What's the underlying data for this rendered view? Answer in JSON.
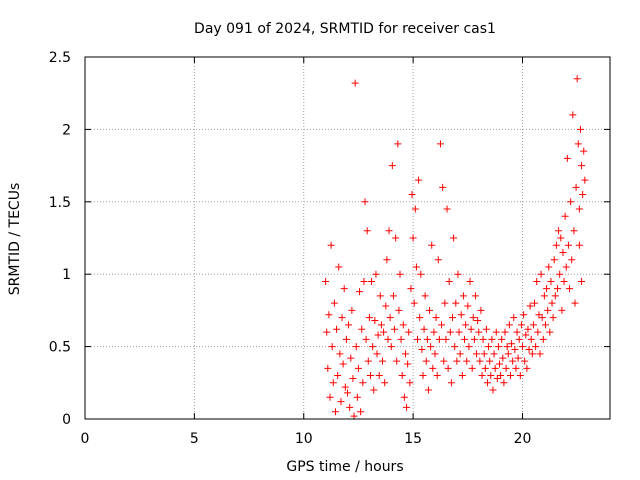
{
  "chart_data": {
    "type": "scatter",
    "title": "Day 091 of 2024, SRMTID for receiver cas1",
    "xlabel": "GPS time / hours",
    "ylabel": "SRMTID / TECUs",
    "xlim": [
      0,
      24
    ],
    "ylim": [
      0,
      2.5
    ],
    "x_ticks": [
      0,
      5,
      10,
      15,
      20
    ],
    "y_ticks": [
      0,
      0.5,
      1,
      1.5,
      2,
      2.5
    ],
    "x_tick_labels": [
      "0",
      "5",
      "10",
      "15",
      "20"
    ],
    "y_tick_labels": [
      "0",
      "0.5",
      "1",
      "1.5",
      "2",
      "2.5"
    ],
    "grid": true,
    "marker": "plus",
    "colors": {
      "points": "#ff0000",
      "grid": "#a0a0a0",
      "axis": "#000000"
    },
    "series": [
      {
        "name": "cas1",
        "points": [
          [
            11.0,
            0.95
          ],
          [
            11.05,
            0.6
          ],
          [
            11.1,
            0.35
          ],
          [
            11.15,
            0.72
          ],
          [
            11.2,
            0.15
          ],
          [
            11.25,
            1.2
          ],
          [
            11.3,
            0.5
          ],
          [
            11.35,
            0.25
          ],
          [
            11.4,
            0.8
          ],
          [
            11.45,
            0.05
          ],
          [
            11.5,
            0.62
          ],
          [
            11.55,
            0.3
          ],
          [
            11.6,
            1.05
          ],
          [
            11.65,
            0.45
          ],
          [
            11.7,
            0.12
          ],
          [
            11.75,
            0.7
          ],
          [
            11.8,
            0.38
          ],
          [
            11.85,
            0.9
          ],
          [
            11.9,
            0.22
          ],
          [
            11.95,
            0.55
          ],
          [
            12.0,
            0.18
          ],
          [
            12.05,
            0.65
          ],
          [
            12.1,
            0.08
          ],
          [
            12.15,
            0.42
          ],
          [
            12.2,
            0.75
          ],
          [
            12.25,
            0.28
          ],
          [
            12.3,
            0.02
          ],
          [
            12.35,
            2.32
          ],
          [
            12.4,
            0.5
          ],
          [
            12.45,
            0.15
          ],
          [
            12.5,
            0.35
          ],
          [
            12.55,
            0.88
          ],
          [
            12.6,
            0.05
          ],
          [
            12.65,
            0.62
          ],
          [
            12.7,
            0.25
          ],
          [
            12.75,
            0.95
          ],
          [
            12.8,
            1.5
          ],
          [
            12.85,
            0.55
          ],
          [
            12.9,
            1.3
          ],
          [
            12.95,
            0.4
          ],
          [
            13.0,
            0.7
          ],
          [
            13.05,
            0.3
          ],
          [
            13.1,
            0.95
          ],
          [
            13.15,
            0.5
          ],
          [
            13.2,
            0.2
          ],
          [
            13.25,
            0.68
          ],
          [
            13.3,
            1.0
          ],
          [
            13.35,
            0.45
          ],
          [
            13.4,
            0.58
          ],
          [
            13.45,
            0.3
          ],
          [
            13.5,
            0.85
          ],
          [
            13.55,
            0.65
          ],
          [
            13.6,
            0.4
          ],
          [
            13.65,
            0.6
          ],
          [
            13.7,
            0.25
          ],
          [
            13.75,
            0.78
          ],
          [
            13.8,
            1.1
          ],
          [
            13.85,
            0.55
          ],
          [
            13.9,
            1.3
          ],
          [
            13.95,
            0.7
          ],
          [
            14.0,
            0.5
          ],
          [
            14.05,
            1.75
          ],
          [
            14.1,
            0.85
          ],
          [
            14.15,
            0.62
          ],
          [
            14.2,
            1.25
          ],
          [
            14.25,
            0.4
          ],
          [
            14.3,
            1.9
          ],
          [
            14.35,
            0.75
          ],
          [
            14.4,
            1.0
          ],
          [
            14.45,
            0.55
          ],
          [
            14.5,
            0.3
          ],
          [
            14.55,
            0.65
          ],
          [
            14.6,
            0.15
          ],
          [
            14.65,
            0.45
          ],
          [
            14.7,
            0.08
          ],
          [
            14.75,
            0.38
          ],
          [
            14.8,
            0.6
          ],
          [
            14.85,
            0.25
          ],
          [
            14.9,
            0.9
          ],
          [
            14.95,
            1.55
          ],
          [
            15.0,
            1.25
          ],
          [
            15.05,
            0.8
          ],
          [
            15.1,
            1.45
          ],
          [
            15.15,
            1.05
          ],
          [
            15.2,
            0.55
          ],
          [
            15.25,
            1.65
          ],
          [
            15.3,
            0.7
          ],
          [
            15.35,
            1.0
          ],
          [
            15.4,
            0.48
          ],
          [
            15.45,
            0.3
          ],
          [
            15.5,
            0.62
          ],
          [
            15.55,
            0.85
          ],
          [
            15.6,
            0.4
          ],
          [
            15.65,
            0.55
          ],
          [
            15.7,
            0.2
          ],
          [
            15.75,
            0.75
          ],
          [
            15.8,
            0.5
          ],
          [
            15.85,
            1.2
          ],
          [
            15.9,
            0.35
          ],
          [
            15.95,
            0.6
          ],
          [
            16.0,
            0.45
          ],
          [
            16.05,
            0.7
          ],
          [
            16.1,
            0.3
          ],
          [
            16.15,
            1.1
          ],
          [
            16.2,
            0.55
          ],
          [
            16.25,
            1.9
          ],
          [
            16.3,
            0.65
          ],
          [
            16.35,
            1.6
          ],
          [
            16.4,
            0.4
          ],
          [
            16.45,
            0.8
          ],
          [
            16.5,
            0.55
          ],
          [
            16.55,
            1.45
          ],
          [
            16.6,
            0.35
          ],
          [
            16.65,
            0.95
          ],
          [
            16.7,
            0.6
          ],
          [
            16.75,
            0.25
          ],
          [
            16.8,
            0.7
          ],
          [
            16.85,
            1.25
          ],
          [
            16.9,
            0.5
          ],
          [
            16.95,
            0.8
          ],
          [
            17.0,
            0.4
          ],
          [
            17.05,
            1.0
          ],
          [
            17.1,
            0.6
          ],
          [
            17.15,
            0.45
          ],
          [
            17.2,
            0.72
          ],
          [
            17.25,
            0.3
          ],
          [
            17.3,
            0.85
          ],
          [
            17.35,
            0.55
          ],
          [
            17.4,
            0.65
          ],
          [
            17.45,
            0.4
          ],
          [
            17.5,
            0.78
          ],
          [
            17.55,
            0.5
          ],
          [
            17.6,
            0.95
          ],
          [
            17.65,
            0.62
          ],
          [
            17.7,
            0.35
          ],
          [
            17.75,
            0.7
          ],
          [
            17.8,
            0.55
          ],
          [
            17.85,
            0.85
          ],
          [
            17.9,
            0.45
          ],
          [
            17.95,
            0.68
          ],
          [
            18.0,
            0.6
          ],
          [
            18.05,
            0.4
          ],
          [
            18.1,
            0.75
          ],
          [
            18.15,
            0.3
          ],
          [
            18.2,
            0.55
          ],
          [
            18.25,
            0.45
          ],
          [
            18.3,
            0.35
          ],
          [
            18.35,
            0.62
          ],
          [
            18.4,
            0.25
          ],
          [
            18.45,
            0.5
          ],
          [
            18.5,
            0.4
          ],
          [
            18.55,
            0.3
          ],
          [
            18.6,
            0.55
          ],
          [
            18.65,
            0.2
          ],
          [
            18.7,
            0.45
          ],
          [
            18.75,
            0.35
          ],
          [
            18.8,
            0.6
          ],
          [
            18.85,
            0.28
          ],
          [
            18.9,
            0.5
          ],
          [
            18.95,
            0.38
          ],
          [
            19.0,
            0.3
          ],
          [
            19.05,
            0.55
          ],
          [
            19.1,
            0.42
          ],
          [
            19.15,
            0.25
          ],
          [
            19.2,
            0.6
          ],
          [
            19.25,
            0.35
          ],
          [
            19.3,
            0.5
          ],
          [
            19.35,
            0.45
          ],
          [
            19.4,
            0.65
          ],
          [
            19.45,
            0.3
          ],
          [
            19.5,
            0.52
          ],
          [
            19.55,
            0.4
          ],
          [
            19.6,
            0.7
          ],
          [
            19.65,
            0.48
          ],
          [
            19.7,
            0.35
          ],
          [
            19.75,
            0.6
          ],
          [
            19.8,
            0.42
          ],
          [
            19.85,
            0.55
          ],
          [
            19.9,
            0.3
          ],
          [
            19.95,
            0.65
          ],
          [
            20.0,
            0.5
          ],
          [
            20.05,
            0.72
          ],
          [
            20.1,
            0.4
          ],
          [
            20.15,
            0.58
          ],
          [
            20.2,
            0.35
          ],
          [
            20.25,
            0.62
          ],
          [
            20.3,
            0.48
          ],
          [
            20.35,
            0.78
          ],
          [
            20.4,
            0.55
          ],
          [
            20.45,
            0.45
          ],
          [
            20.5,
            0.65
          ],
          [
            20.55,
            0.8
          ],
          [
            20.6,
            0.5
          ],
          [
            20.65,
            0.95
          ],
          [
            20.7,
            0.6
          ],
          [
            20.75,
            0.72
          ],
          [
            20.8,
            0.45
          ],
          [
            20.85,
            1.0
          ],
          [
            20.9,
            0.7
          ],
          [
            20.95,
            0.55
          ],
          [
            21.0,
            0.85
          ],
          [
            21.05,
            0.65
          ],
          [
            21.1,
            0.9
          ],
          [
            21.15,
            0.75
          ],
          [
            21.2,
            1.05
          ],
          [
            21.25,
            0.6
          ],
          [
            21.3,
            0.95
          ],
          [
            21.35,
            0.8
          ],
          [
            21.4,
            0.7
          ],
          [
            21.45,
            1.1
          ],
          [
            21.5,
            0.85
          ],
          [
            21.55,
            1.2
          ],
          [
            21.6,
            0.9
          ],
          [
            21.65,
            1.3
          ],
          [
            21.7,
            1.0
          ],
          [
            21.75,
            1.25
          ],
          [
            21.8,
            0.75
          ],
          [
            21.85,
            1.15
          ],
          [
            21.9,
            0.95
          ],
          [
            21.95,
            1.4
          ],
          [
            22.0,
            1.05
          ],
          [
            22.05,
            1.8
          ],
          [
            22.1,
            1.2
          ],
          [
            22.15,
            0.9
          ],
          [
            22.2,
            1.5
          ],
          [
            22.25,
            1.1
          ],
          [
            22.3,
            2.1
          ],
          [
            22.35,
            1.3
          ],
          [
            22.4,
            0.8
          ],
          [
            22.45,
            1.6
          ],
          [
            22.5,
            2.35
          ],
          [
            22.55,
            1.9
          ],
          [
            22.6,
            1.45
          ],
          [
            22.65,
            2.0
          ],
          [
            22.7,
            1.75
          ],
          [
            22.75,
            1.55
          ],
          [
            22.8,
            1.85
          ],
          [
            22.85,
            1.65
          ],
          [
            22.6,
            1.2
          ],
          [
            22.7,
            0.95
          ]
        ]
      }
    ]
  }
}
